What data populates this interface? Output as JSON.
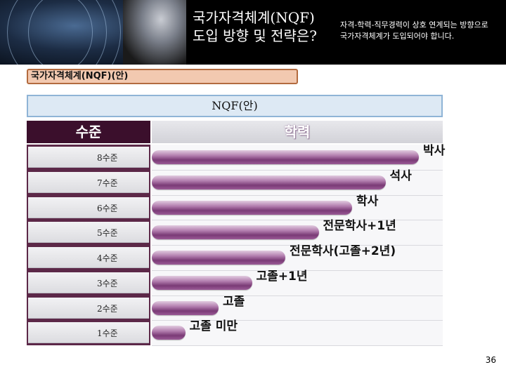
{
  "header": {
    "title_line1": "국가자격체계(NQF)",
    "title_line2": "도입 방향 및 전략은?",
    "subtitle": "자격-학력-직무경력이 상호 연계되는 방향으로 국가자격체계가 도입되어야 합니다."
  },
  "section_label": "국가자격체계(NQF)(안)",
  "nqf_title": "NQF(안)",
  "chart": {
    "level_header": "수준",
    "edu_header": "학력"
  },
  "chart_data": {
    "type": "bar",
    "orientation": "horizontal",
    "categories": [
      "8수준",
      "7수준",
      "6수준",
      "5수준",
      "4수준",
      "3수준",
      "2수준",
      "1수준"
    ],
    "bar_labels": [
      "박사",
      "석사",
      "학사",
      "전문학사+1년",
      "전문학사(고졸+2년)",
      "고졸+1년",
      "고졸",
      "고졸 미만"
    ],
    "values": [
      8,
      7,
      6,
      5,
      4,
      3,
      2,
      1
    ],
    "xlim": [
      0,
      8
    ]
  },
  "page_number": "36"
}
